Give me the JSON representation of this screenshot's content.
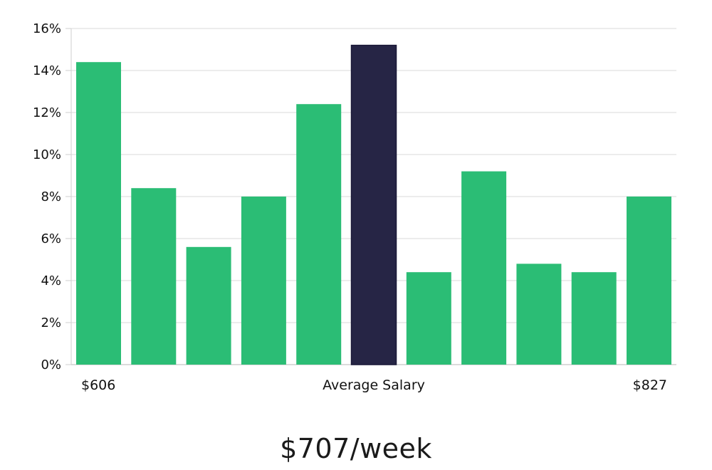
{
  "chart_data": {
    "type": "bar",
    "values": [
      14.4,
      8.4,
      5.6,
      8.0,
      12.4,
      15.2,
      4.4,
      9.2,
      4.8,
      4.4,
      8.0
    ],
    "highlight_index": 5,
    "ylim": [
      0,
      16
    ],
    "yticks": [
      "0%",
      "2%",
      "4%",
      "6%",
      "8%",
      "10%",
      "12%",
      "14%",
      "16%"
    ],
    "x_labels": {
      "left": "$606",
      "center": "Average Salary",
      "right": "$827"
    },
    "grid": true,
    "colors": {
      "bar": "#2bbd75",
      "highlight": "#262545",
      "grid": "#e6e6e6",
      "axis": "#cfcfcf"
    }
  },
  "footer": {
    "salary": "$707/week"
  }
}
